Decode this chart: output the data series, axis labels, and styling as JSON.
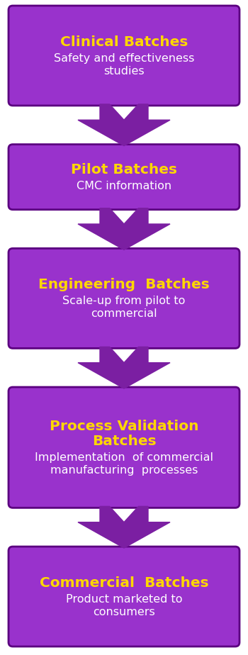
{
  "background_color": "#ffffff",
  "box_color": "#9932CC",
  "box_edge_color": "#5B0080",
  "arrow_color": "#7B1FA2",
  "title_color": "#FFD700",
  "subtitle_color": "#FFFFFF",
  "boxes": [
    {
      "title": "Clinical Batches",
      "subtitle": "Safety and effectiveness\nstudies",
      "title_lines": 1,
      "subtitle_lines": 2
    },
    {
      "title": "Pilot Batches",
      "subtitle": "CMC information",
      "title_lines": 1,
      "subtitle_lines": 1
    },
    {
      "title": "Engineering  Batches",
      "subtitle": "Scale-up from pilot to\ncommercial",
      "title_lines": 1,
      "subtitle_lines": 2
    },
    {
      "title": "Process Validation\nBatches",
      "subtitle": "Implementation  of commercial\nmanufacturing  processes",
      "title_lines": 2,
      "subtitle_lines": 2
    },
    {
      "title": "Commercial  Batches",
      "subtitle": "Product marketed to\nconsumers",
      "title_lines": 1,
      "subtitle_lines": 2
    }
  ],
  "title_fontsize": 14.5,
  "subtitle_fontsize": 11.5,
  "fig_width": 3.5,
  "fig_height": 9.24,
  "dpi": 100
}
